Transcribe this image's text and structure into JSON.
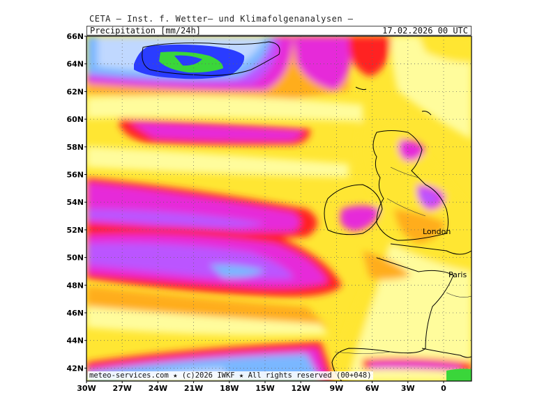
{
  "header": {
    "title": "CETA — Inst. f. Wetter— und Klimafolgenanalysen —",
    "parameter": "Precipitation [mm/24h]",
    "datetime": "17.02.2026 00 UTC"
  },
  "map": {
    "lat_labels": [
      "66N",
      "64N",
      "62N",
      "60N",
      "58N",
      "56N",
      "54N",
      "52N",
      "50N",
      "48N",
      "46N",
      "44N",
      "42N"
    ],
    "lon_labels": [
      "30W",
      "27W",
      "24W",
      "21W",
      "18W",
      "15W",
      "12W",
      "9W",
      "6W",
      "3W",
      "0"
    ],
    "cities": [
      "London",
      "Paris"
    ],
    "colors": {
      "light_yellow": "#fffc9c",
      "yellow": "#ffe633",
      "orange": "#ffad1f",
      "red": "#ff2222",
      "magenta": "#e62ad9",
      "violet": "#bb55ff",
      "light_blue": "#7ab7ff",
      "pale_blue": "#c0d8ff",
      "blue": "#2a3cff",
      "green": "#3ad63a",
      "coast": "#000000",
      "grid": "#666666"
    }
  },
  "footer": "meteo-services.com ★ (c)2026 IWKF ★ All rights reserved (00+048)"
}
